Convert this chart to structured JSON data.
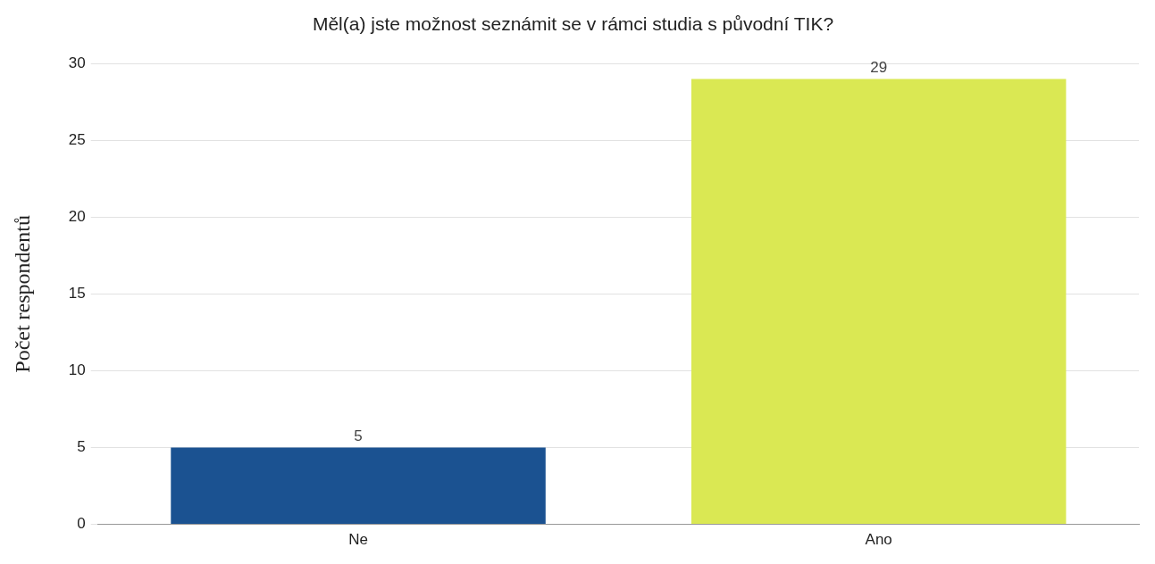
{
  "chart_data": {
    "type": "bar",
    "title": "Měl(a) jste možnost seznámit se v rámci studia s původní TIK?",
    "ylabel": "Počet respondentů",
    "categories": [
      "Ne",
      "Ano"
    ],
    "values": [
      5,
      29
    ],
    "colors": [
      "#1b5291",
      "#dae853"
    ],
    "ylim": [
      0,
      30
    ],
    "yticks": [
      0,
      5,
      10,
      15,
      20,
      25,
      30
    ],
    "grid": "y",
    "data_labels": true,
    "legend": false
  }
}
